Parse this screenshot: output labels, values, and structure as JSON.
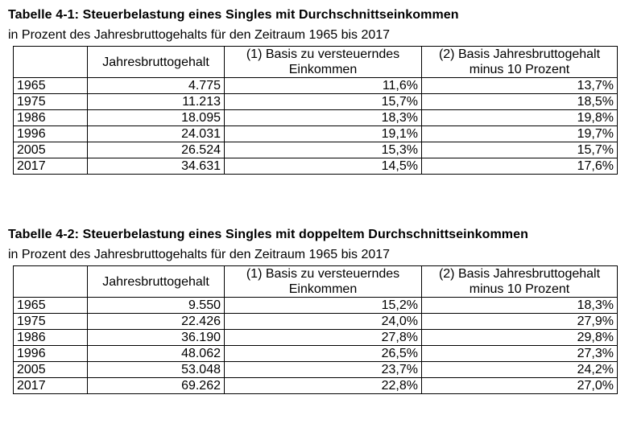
{
  "tables": [
    {
      "title_prefix": "Tabelle 4-1:",
      "title_rest": " Steuerbelastung eines Singles mit Durchschnittseinkommen",
      "subtitle": "in Prozent des Jahresbruttogehalts für den Zeitraum 1965 bis 2017",
      "headers": [
        "",
        "Jahresbruttogehalt",
        "(1) Basis zu versteuerndes Einkommen",
        "(2) Basis Jahresbruttogehalt minus 10 Prozent"
      ],
      "header_lines": {
        "col2_line1": "(1) Basis zu versteuerndes",
        "col2_line2": "Einkommen",
        "col3_line1": "(2) Basis Jahresbruttogehalt",
        "col3_line2": "minus 10 Prozent"
      },
      "rows": [
        [
          "1965",
          "4.775",
          "11,6%",
          "13,7%"
        ],
        [
          "1975",
          "11.213",
          "15,7%",
          "18,5%"
        ],
        [
          "1986",
          "18.095",
          "18,3%",
          "19,8%"
        ],
        [
          "1996",
          "24.031",
          "19,1%",
          "19,7%"
        ],
        [
          "2005",
          "26.524",
          "15,3%",
          "15,7%"
        ],
        [
          "2017",
          "34.631",
          "14,5%",
          "17,6%"
        ]
      ]
    },
    {
      "title_prefix": "Tabelle 4-2:",
      "title_rest": " Steuerbelastung eines Singles mit doppeltem Durchschnittseinkommen",
      "subtitle": "in Prozent des Jahresbruttogehalts für den Zeitraum 1965 bis 2017",
      "headers": [
        "",
        "Jahresbruttogehalt",
        "(1) Basis zu versteuerndes Einkommen",
        "(2) Basis Jahresbruttogehalt minus 10 Prozent"
      ],
      "header_lines": {
        "col2_line1": "(1) Basis zu versteuerndes",
        "col2_line2": "Einkommen",
        "col3_line1": "(2) Basis Jahresbruttogehalt",
        "col3_line2": "minus 10 Prozent"
      },
      "rows": [
        [
          "1965",
          "9.550",
          "15,2%",
          "18,3%"
        ],
        [
          "1975",
          "22.426",
          "24,0%",
          "27,9%"
        ],
        [
          "1986",
          "36.190",
          "27,8%",
          "29,8%"
        ],
        [
          "1996",
          "48.062",
          "26,5%",
          "27,3%"
        ],
        [
          "2005",
          "53.048",
          "23,7%",
          "24,2%"
        ],
        [
          "2017",
          "69.262",
          "22,8%",
          "27,0%"
        ]
      ]
    }
  ]
}
